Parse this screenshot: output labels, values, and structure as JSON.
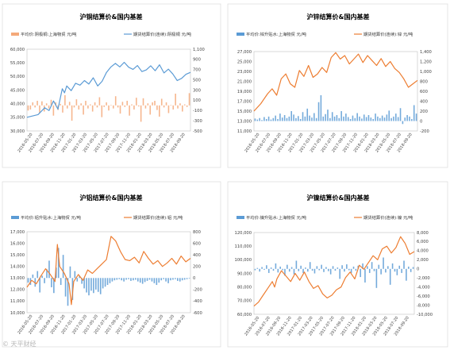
{
  "colors": {
    "bar": "#5b9bd5",
    "bar_copper": "#f4a97a",
    "line_blue": "#5b9bd5",
    "line_orange": "#ed7d31"
  },
  "watermark": "© 天平财经",
  "chart_data": [
    {
      "type": "bar+line",
      "title": "沪铜结算价&国内基差",
      "legend": [
        "平均价:阴极铜:上海物贸 元/吨",
        "期货结算价(连续):阴极铜 元/吨"
      ],
      "x_labels": [
        "2016-05-20",
        "2016-07-20",
        "2016-09-20",
        "2016-11-20",
        "2017-01-20",
        "2017-03-20",
        "2017-05-20",
        "2017-07-20",
        "2017-09-20",
        "2017-11-20",
        "2018-01-20",
        "2018-03-20",
        "2018-05-20",
        "2018-07-20",
        "2018-09-20"
      ],
      "left_ticks": [
        "60,000",
        "55,000",
        "50,000",
        "45,000",
        "40,000",
        "35,000",
        "30,000"
      ],
      "left_lim": [
        30000,
        60000
      ],
      "right_ticks": [
        "1,100",
        "900",
        "700",
        "500",
        "300",
        "100",
        "-100",
        "-300",
        "-500"
      ],
      "right_lim": [
        -500,
        1100
      ],
      "bar_series": {
        "color": "#f4a97a",
        "values": [
          -100,
          -80,
          60,
          -40,
          90,
          -150,
          80,
          -120,
          40,
          -60,
          110,
          -200,
          60,
          -90,
          30,
          -140,
          200,
          -60,
          70,
          -300,
          -40,
          120,
          -80,
          40,
          -180,
          90,
          -60,
          20,
          -120,
          60,
          -40,
          160,
          -230,
          -30,
          60,
          -100,
          10,
          -60,
          180,
          -40,
          -160,
          70,
          -30,
          90,
          -200,
          20,
          -80,
          150,
          -20,
          -320,
          140,
          -60,
          40,
          -180,
          60,
          90,
          -90,
          -220,
          130,
          -40,
          60,
          -150,
          10,
          -80,
          230,
          -60,
          40,
          -120,
          20,
          -30,
          240
        ]
      },
      "line_series": {
        "color": "#5b9bd5",
        "points": [
          [
            0,
            35000
          ],
          [
            5,
            36000
          ],
          [
            8,
            38500
          ],
          [
            10,
            37500
          ],
          [
            12,
            41000
          ],
          [
            14,
            38000
          ],
          [
            16,
            45500
          ],
          [
            17,
            44000
          ],
          [
            18,
            46500
          ],
          [
            20,
            44800
          ],
          [
            22,
            47500
          ],
          [
            24,
            46800
          ],
          [
            26,
            48500
          ],
          [
            28,
            47200
          ],
          [
            30,
            49500
          ],
          [
            32,
            46500
          ],
          [
            34,
            48200
          ],
          [
            36,
            51500
          ],
          [
            38,
            53500
          ],
          [
            40,
            54800
          ],
          [
            42,
            53500
          ],
          [
            44,
            55200
          ],
          [
            46,
            53400
          ],
          [
            48,
            52600
          ],
          [
            50,
            54000
          ],
          [
            52,
            51800
          ],
          [
            54,
            52400
          ],
          [
            56,
            53900
          ],
          [
            58,
            52100
          ],
          [
            60,
            54300
          ],
          [
            62,
            51300
          ],
          [
            64,
            52700
          ],
          [
            66,
            50900
          ],
          [
            68,
            48500
          ],
          [
            70,
            49300
          ],
          [
            72,
            50800
          ],
          [
            74,
            51500
          ]
        ]
      },
      "bar_domain": 74
    },
    {
      "type": "bar+line",
      "title": "沪锌结算价&国内基差",
      "legend": [
        "平均价:锌升贴水:上海物贸 元/吨",
        "期货结算价(连续):锌 元/吨"
      ],
      "x_labels": [
        "2016-05-20",
        "2016-07-20",
        "2016-09-20",
        "2016-11-20",
        "2017-01-20",
        "2017-03-20",
        "2017-05-20",
        "2017-07-20",
        "2017-09-20",
        "2017-11-20",
        "2018-01-20",
        "2018-03-20",
        "2018-05-20",
        "2018-07-20",
        "2018-09-20"
      ],
      "left_ticks": [
        "27,000",
        "25,000",
        "23,000",
        "21,000",
        "19,000",
        "17,000",
        "15,000",
        "13,000",
        "11,000"
      ],
      "left_lim": [
        11000,
        27000
      ],
      "right_ticks": [
        "1,400",
        "1,200",
        "1,000",
        "800",
        "600",
        "400",
        "200",
        "0",
        "-200"
      ],
      "right_lim": [
        -200,
        1400
      ],
      "bar_series": {
        "color": "#5b9bd5",
        "values": [
          50,
          30,
          60,
          20,
          80,
          40,
          90,
          30,
          60,
          110,
          40,
          150,
          70,
          120,
          60,
          90,
          200,
          130,
          60,
          100,
          40,
          180,
          90,
          250,
          110,
          70,
          160,
          60,
          380,
          520,
          90,
          140,
          230,
          60,
          180,
          90,
          120,
          60,
          200,
          90,
          150,
          80,
          40,
          110,
          60,
          160,
          90,
          50,
          130,
          80,
          120,
          70,
          40,
          150,
          90,
          60,
          110,
          70,
          130,
          210,
          60,
          90,
          150,
          80,
          260,
          -60,
          70,
          120,
          90,
          40,
          320,
          150
        ]
      },
      "line_series": {
        "color": "#ed7d31",
        "points": [
          [
            0,
            15000
          ],
          [
            3,
            16500
          ],
          [
            6,
            18500
          ],
          [
            8,
            19500
          ],
          [
            10,
            18200
          ],
          [
            12,
            21500
          ],
          [
            14,
            22500
          ],
          [
            16,
            20500
          ],
          [
            18,
            19800
          ],
          [
            20,
            23200
          ],
          [
            22,
            22000
          ],
          [
            24,
            24200
          ],
          [
            26,
            21800
          ],
          [
            28,
            22500
          ],
          [
            30,
            23800
          ],
          [
            32,
            22800
          ],
          [
            34,
            25800
          ],
          [
            36,
            26800
          ],
          [
            38,
            25500
          ],
          [
            40,
            26200
          ],
          [
            42,
            24500
          ],
          [
            44,
            25500
          ],
          [
            46,
            26500
          ],
          [
            48,
            24800
          ],
          [
            50,
            26200
          ],
          [
            52,
            25200
          ],
          [
            54,
            24200
          ],
          [
            56,
            25600
          ],
          [
            58,
            24000
          ],
          [
            60,
            25000
          ],
          [
            62,
            23600
          ],
          [
            64,
            22800
          ],
          [
            66,
            21500
          ],
          [
            68,
            19800
          ],
          [
            70,
            20500
          ],
          [
            72,
            21200
          ]
        ]
      },
      "bar_domain": 72
    },
    {
      "type": "bar+line",
      "title": "沪铝结算价&国内基差",
      "legend": [
        "平均价:铝升贴水:上海物贸 元/吨",
        "期货结算价(连续):铝 元/吨"
      ],
      "x_labels": [
        "2016-05-20",
        "2016-07-20",
        "2016-09-20",
        "2016-11-20",
        "2017-01-20",
        "2017-03-20",
        "2017-05-20",
        "2017-07-20",
        "2017-09-20",
        "2017-11-20",
        "2018-01-20",
        "2018-03-20",
        "2018-05-20",
        "2018-07-20",
        "2018-09-20"
      ],
      "left_ticks": [
        "17,000",
        "16,000",
        "15,000",
        "14,000",
        "13,000",
        "12,000",
        "11,000",
        "10,000"
      ],
      "left_lim": [
        10000,
        17000
      ],
      "right_ticks": [
        "800",
        "600",
        "400",
        "200",
        "0",
        "-200",
        "-400",
        "-600"
      ],
      "right_lim": [
        -600,
        800
      ],
      "bar_series": {
        "color": "#5b9bd5",
        "values": [
          -80,
          -120,
          60,
          -150,
          120,
          -250,
          40,
          -90,
          150,
          300,
          -160,
          -260,
          180,
          520,
          -120,
          400,
          -320,
          -480,
          200,
          -380,
          120,
          -60,
          40,
          -100,
          -180,
          -250,
          -300,
          -220,
          -260,
          -200,
          -240,
          -280,
          -180,
          -150,
          -120,
          -90,
          -60,
          -40,
          -30,
          -20,
          -40,
          -60,
          -30,
          -20,
          -50,
          -40,
          -30,
          -60,
          -80,
          -100,
          -70,
          -50,
          -30,
          -60,
          -90,
          -120,
          -80,
          -40,
          -20,
          -60,
          -90,
          -40,
          -30,
          -20,
          -50,
          -60,
          -40,
          -30,
          -20,
          -10
        ]
      },
      "line_series": {
        "color": "#ed7d31",
        "points": [
          [
            0,
            12200
          ],
          [
            2,
            12800
          ],
          [
            4,
            12500
          ],
          [
            6,
            13200
          ],
          [
            8,
            13800
          ],
          [
            10,
            13300
          ],
          [
            12,
            12700
          ],
          [
            13,
            15900
          ],
          [
            14,
            14000
          ],
          [
            16,
            13400
          ],
          [
            18,
            12500
          ],
          [
            19,
            10700
          ],
          [
            20,
            12700
          ],
          [
            22,
            13300
          ],
          [
            24,
            12800
          ],
          [
            26,
            13700
          ],
          [
            28,
            13400
          ],
          [
            30,
            13800
          ],
          [
            32,
            14200
          ],
          [
            34,
            14600
          ],
          [
            36,
            16600
          ],
          [
            38,
            16200
          ],
          [
            40,
            15300
          ],
          [
            42,
            14600
          ],
          [
            44,
            14500
          ],
          [
            46,
            14800
          ],
          [
            48,
            14300
          ],
          [
            50,
            15300
          ],
          [
            52,
            14700
          ],
          [
            54,
            14200
          ],
          [
            56,
            14500
          ],
          [
            58,
            14000
          ],
          [
            60,
            14300
          ],
          [
            62,
            14700
          ],
          [
            64,
            14200
          ],
          [
            66,
            14900
          ],
          [
            68,
            14400
          ],
          [
            70,
            14700
          ]
        ]
      },
      "bar_domain": 70
    },
    {
      "type": "bar+line",
      "title": "沪镍结算价&国内基差",
      "legend": [
        "平均价:镍升贴水:上海物贸 元/吨",
        "期货结算价(连续):镍 元/吨"
      ],
      "x_labels": [
        "2016-05-20",
        "2016-07-20",
        "2016-09-20",
        "2016-11-20",
        "2017-01-20",
        "2017-03-20",
        "2017-05-20",
        "2017-07-20",
        "2017-09-20",
        "2017-11-20",
        "2018-01-20",
        "2018-03-20",
        "2018-05-20",
        "2018-07-20",
        "2018-09-20"
      ],
      "left_ticks": [
        "120,000",
        "110,000",
        "100,000",
        "90,000",
        "80,000",
        "70,000",
        "60,000"
      ],
      "left_lim": [
        60000,
        120000
      ],
      "right_ticks": [
        "8,000",
        "6,000",
        "4,000",
        "2,000",
        "0",
        "-2,000",
        "-4,000",
        "-6,000",
        "-8,000",
        "-10,000"
      ],
      "right_lim": [
        -10000,
        8000
      ],
      "bar_series": {
        "color": "#5b9bd5",
        "values": [
          -300,
          200,
          -600,
          400,
          -200,
          800,
          -900,
          300,
          -400,
          1200,
          -800,
          500,
          -300,
          -1500,
          900,
          -600,
          400,
          -1200,
          1800,
          -500,
          700,
          -900,
          300,
          -600,
          1500,
          -400,
          -1000,
          600,
          -300,
          900,
          -700,
          400,
          -500,
          -1200,
          600,
          -400,
          300,
          -2200,
          800,
          -600,
          1000,
          -300,
          -900,
          500,
          -400,
          700,
          -1800,
          1200,
          -3000,
          600,
          -900,
          1500,
          -500,
          -4200,
          900,
          -1200,
          2500,
          -800,
          600,
          -3500,
          1200,
          -600,
          -1400,
          700,
          -900,
          1800,
          -2600,
          500,
          -700,
          400
        ]
      },
      "line_series": {
        "color": "#ed7d31",
        "points": [
          [
            0,
            66000
          ],
          [
            2,
            69000
          ],
          [
            4,
            74000
          ],
          [
            6,
            79000
          ],
          [
            8,
            84000
          ],
          [
            9,
            80000
          ],
          [
            10,
            86000
          ],
          [
            12,
            92000
          ],
          [
            14,
            88000
          ],
          [
            16,
            84000
          ],
          [
            18,
            90000
          ],
          [
            20,
            85000
          ],
          [
            22,
            91000
          ],
          [
            24,
            84000
          ],
          [
            26,
            79000
          ],
          [
            28,
            81000
          ],
          [
            30,
            75000
          ],
          [
            32,
            72000
          ],
          [
            34,
            74000
          ],
          [
            36,
            78000
          ],
          [
            38,
            80000
          ],
          [
            40,
            87000
          ],
          [
            42,
            91000
          ],
          [
            44,
            86000
          ],
          [
            46,
            96000
          ],
          [
            48,
            93000
          ],
          [
            50,
            98000
          ],
          [
            52,
            103000
          ],
          [
            54,
            100000
          ],
          [
            56,
            108000
          ],
          [
            58,
            110000
          ],
          [
            60,
            105000
          ],
          [
            62,
            109000
          ],
          [
            64,
            117000
          ],
          [
            66,
            112000
          ],
          [
            68,
            104000
          ],
          [
            70,
            106000
          ]
        ]
      },
      "bar_domain": 70
    }
  ]
}
